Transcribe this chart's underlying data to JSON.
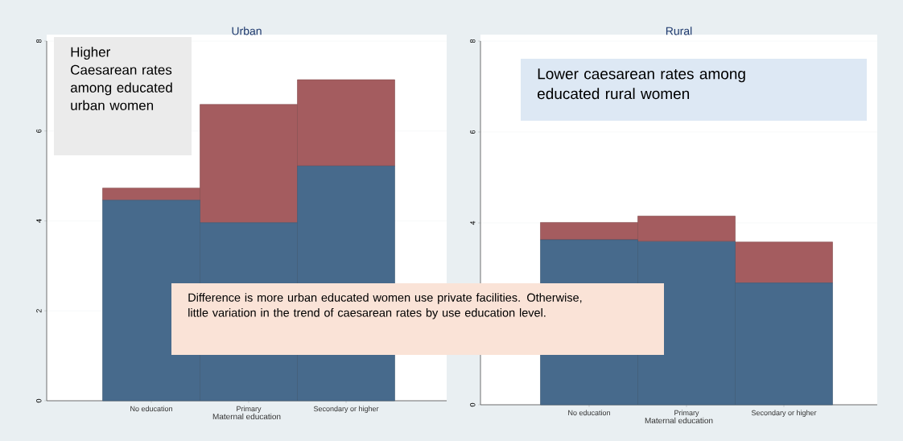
{
  "chart_data": [
    {
      "type": "bar",
      "title": "Urban",
      "xlabel": "Maternal education",
      "categories": [
        "No education",
        "Primary",
        "Secondary or higher"
      ],
      "stacked": true,
      "grid": "y",
      "ylim": [
        0,
        8
      ],
      "yticks": [
        0,
        2,
        4,
        6,
        8
      ],
      "series": [
        {
          "color": "#476a8c",
          "values": [
            4.46,
            3.96,
            5.22
          ]
        },
        {
          "color": "#a45c5f",
          "values": [
            0.27,
            2.63,
            1.92
          ]
        }
      ],
      "annotations": [
        "Higher Caesarean rates among educated urban women",
        "Difference is more urban educated women use private facilities. Otherwise, little variation in the trend of caesarean rates by use education level."
      ]
    },
    {
      "type": "bar",
      "title": "Rural",
      "xlabel": "Maternal education",
      "categories": [
        "No education",
        "Primary",
        "Secondary or higher"
      ],
      "stacked": true,
      "grid": "y",
      "ylim": [
        0,
        8
      ],
      "yticks": [
        0,
        4,
        6,
        8
      ],
      "series": [
        {
          "color": "#476a8c",
          "values": [
            3.63,
            3.59,
            2.68
          ]
        },
        {
          "color": "#a45c5f",
          "values": [
            0.38,
            0.56,
            0.9
          ]
        }
      ],
      "annotations": [
        "Lower caesarean rates among educated rural women"
      ]
    }
  ]
}
